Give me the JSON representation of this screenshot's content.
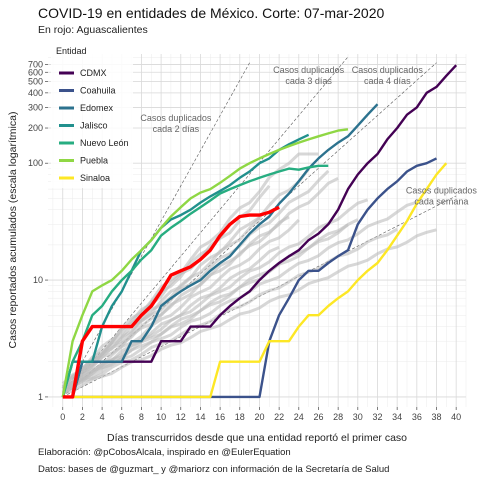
{
  "title": "COVID-19 en entidades de México. Corte: 07-mar-2020",
  "subtitle": "En rojo: Aguascalientes",
  "caption1": "Elaboración: @pCobosAlcala, inspirado en @EulerEquation",
  "caption2": "Datos: bases de @guzmart_ y @mariorz con información de la Secretaría de Salud",
  "chart_data": {
    "type": "line",
    "xlabel": "Días transcurridos desde que una entidad reportó el primer caso",
    "ylabel": "Casos reportados acumulados (escala logarítmica)",
    "xlim": [
      -1.5,
      41
    ],
    "ylim": [
      0.82,
      860
    ],
    "yscale": "log",
    "x_ticks": [
      0,
      2,
      4,
      6,
      8,
      10,
      12,
      14,
      16,
      18,
      20,
      22,
      24,
      26,
      28,
      30,
      32,
      34,
      36,
      38,
      40
    ],
    "y_ticks": [
      1,
      10,
      100,
      200,
      300,
      400,
      500,
      600,
      700
    ],
    "y_tick_labels": [
      "1",
      "10",
      "100",
      "200",
      "300",
      "400",
      "500",
      "600",
      "700"
    ],
    "grid": true,
    "legend": {
      "title": "Entidad",
      "position": "top-left"
    },
    "highlight": {
      "color": "#ff0000",
      "x": [
        0,
        1,
        2,
        3,
        4,
        5,
        6,
        7,
        8,
        9,
        10,
        11,
        12,
        13,
        14,
        15,
        16,
        17,
        18,
        19,
        20,
        21,
        22
      ],
      "y": [
        1,
        1,
        3,
        4,
        4,
        4,
        4,
        4,
        5,
        6,
        8,
        11,
        12,
        13,
        15,
        18,
        24,
        30,
        35,
        36,
        36,
        38,
        42
      ]
    },
    "annotations": [
      {
        "text": "Casos duplicados cada 2 días",
        "lines": [
          "Casos duplicados",
          "cada 2 días"
        ],
        "x": 11.5,
        "y": 230
      },
      {
        "text": "Casos duplicados cada 3 días",
        "lines": [
          "Casos duplicados",
          "cada 3 días"
        ],
        "x": 25,
        "y": 590
      },
      {
        "text": "Casos duplicados cada 4 días",
        "lines": [
          "Casos duplicados",
          "cada 4 días"
        ],
        "x": 33,
        "y": 590
      },
      {
        "text": "Casos duplicados cada semana",
        "lines": [
          "Casos duplicados",
          "cada semana"
        ],
        "x": 38.5,
        "y": 55
      }
    ],
    "reference_lines": [
      {
        "doubling_days": 2,
        "x_end": 19
      },
      {
        "doubling_days": 3,
        "x_end": 29
      },
      {
        "doubling_days": 4,
        "x_end": 38
      },
      {
        "doubling_days": 7,
        "x_end": 40
      }
    ],
    "series": [
      {
        "name": "CDMX",
        "color": "#440154",
        "x": [
          0,
          1,
          2,
          3,
          4,
          5,
          6,
          7,
          8,
          9,
          10,
          11,
          12,
          13,
          14,
          15,
          16,
          17,
          18,
          19,
          20,
          21,
          22,
          23,
          24,
          25,
          26,
          27,
          28,
          29,
          30,
          31,
          32,
          33,
          34,
          35,
          36,
          37,
          38,
          39,
          40
        ],
        "y": [
          1,
          1,
          2,
          2,
          2,
          2,
          2,
          2,
          2,
          2,
          3,
          3,
          3,
          4,
          4,
          4,
          5,
          6,
          7,
          8,
          10,
          12,
          14,
          16,
          18,
          22,
          25,
          30,
          40,
          60,
          80,
          100,
          120,
          160,
          200,
          260,
          300,
          400,
          450,
          560,
          690
        ]
      },
      {
        "name": "Coahuila",
        "color": "#3b528b",
        "x": [
          0,
          1,
          2,
          3,
          4,
          5,
          6,
          7,
          8,
          9,
          10,
          11,
          12,
          13,
          14,
          15,
          16,
          17,
          18,
          19,
          20,
          21,
          22,
          23,
          24,
          25,
          26,
          27,
          28,
          29,
          30,
          31,
          32,
          33,
          34,
          35,
          36,
          37,
          38
        ],
        "y": [
          1,
          1,
          1,
          1,
          1,
          1,
          1,
          1,
          1,
          1,
          1,
          1,
          1,
          1,
          1,
          1,
          1,
          1,
          1,
          1,
          1,
          3,
          5,
          7,
          10,
          12,
          12,
          14,
          16,
          18,
          30,
          40,
          50,
          60,
          70,
          85,
          95,
          100,
          110
        ]
      },
      {
        "name": "Edomex",
        "color": "#2c728e",
        "x": [
          0,
          1,
          2,
          3,
          4,
          5,
          6,
          7,
          8,
          9,
          10,
          11,
          12,
          13,
          14,
          15,
          16,
          17,
          18,
          19,
          20,
          21,
          22,
          23,
          24,
          25,
          26,
          27,
          28,
          29,
          30,
          31,
          32
        ],
        "y": [
          1,
          1,
          2,
          2,
          2,
          2,
          2,
          3,
          3,
          4,
          6,
          7,
          8,
          9,
          10,
          12,
          14,
          16,
          20,
          25,
          30,
          35,
          45,
          55,
          70,
          90,
          110,
          130,
          150,
          170,
          210,
          260,
          320
        ]
      },
      {
        "name": "Jalisco",
        "color": "#21908d",
        "x": [
          0,
          1,
          2,
          3,
          4,
          5,
          6,
          7,
          8,
          9,
          10,
          11,
          12,
          13,
          14,
          15,
          16,
          17,
          18,
          19,
          20,
          21,
          22,
          23,
          24,
          25
        ],
        "y": [
          1,
          2,
          2,
          2,
          4,
          6,
          8,
          12,
          18,
          22,
          28,
          33,
          36,
          40,
          46,
          52,
          58,
          65,
          75,
          85,
          100,
          110,
          130,
          145,
          160,
          175
        ]
      },
      {
        "name": "Nuevo León",
        "color": "#27ad81",
        "x": [
          0,
          1,
          2,
          3,
          4,
          5,
          6,
          7,
          8,
          9,
          10,
          11,
          12,
          13,
          14,
          15,
          16,
          17,
          18,
          19,
          20,
          21,
          22,
          23,
          24,
          25,
          26,
          27
        ],
        "y": [
          1,
          2,
          3,
          5,
          6,
          8,
          10,
          12,
          15,
          18,
          24,
          28,
          32,
          37,
          42,
          48,
          55,
          60,
          65,
          70,
          75,
          80,
          85,
          90,
          88,
          92,
          95,
          95
        ]
      },
      {
        "name": "Puebla",
        "color": "#8fd744",
        "x": [
          0,
          1,
          2,
          3,
          4,
          5,
          6,
          7,
          8,
          9,
          10,
          11,
          12,
          13,
          14,
          15,
          16,
          17,
          18,
          19,
          20,
          21,
          22,
          23,
          24,
          25,
          26,
          27,
          28,
          29
        ],
        "y": [
          1,
          3,
          5,
          8,
          9,
          10,
          12,
          15,
          18,
          22,
          28,
          35,
          42,
          50,
          56,
          60,
          68,
          78,
          90,
          100,
          110,
          120,
          130,
          140,
          150,
          160,
          170,
          180,
          190,
          195
        ]
      },
      {
        "name": "Sinaloa",
        "color": "#fde725",
        "x": [
          0,
          1,
          2,
          3,
          4,
          5,
          6,
          7,
          8,
          9,
          10,
          11,
          12,
          13,
          14,
          15,
          16,
          17,
          18,
          19,
          20,
          21,
          22,
          23,
          24,
          25,
          26,
          27,
          28,
          29,
          30,
          31,
          32,
          33,
          34,
          35,
          36,
          37,
          38,
          39
        ],
        "y": [
          1,
          1,
          1,
          1,
          1,
          1,
          1,
          1,
          1,
          1,
          1,
          1,
          1,
          1,
          1,
          1,
          2,
          2,
          2,
          2,
          2,
          3,
          3,
          3,
          4,
          5,
          5,
          6,
          7,
          8,
          10,
          12,
          14,
          18,
          24,
          32,
          45,
          60,
          80,
          100
        ]
      }
    ]
  }
}
